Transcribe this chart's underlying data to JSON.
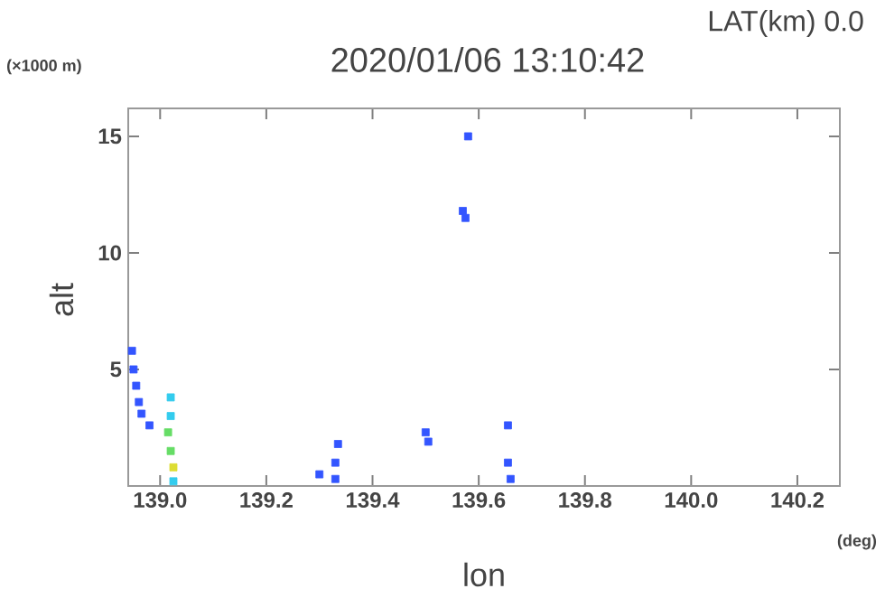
{
  "chart_data": {
    "type": "scatter",
    "title": "2020/01/06 13:10:42",
    "subtitle": "LAT(km) 0.0",
    "xlabel": "lon",
    "ylabel": "alt",
    "annotations": [
      "(×1000 m)",
      "(deg)"
    ],
    "xlim": [
      138.94,
      140.28
    ],
    "ylim": [
      0,
      16.2
    ],
    "xticks": [
      {
        "value": 139.0,
        "label": "139.0"
      },
      {
        "value": 139.2,
        "label": "139.2"
      },
      {
        "value": 139.4,
        "label": "139.4"
      },
      {
        "value": 139.6,
        "label": "139.6"
      },
      {
        "value": 139.8,
        "label": "139.8"
      },
      {
        "value": 140.0,
        "label": "140.0"
      },
      {
        "value": 140.2,
        "label": "140.2"
      }
    ],
    "yticks": [
      5,
      10,
      15
    ],
    "marker": "square",
    "grid": false,
    "series": [
      {
        "color": "#3355ff",
        "x": [
          138.947,
          138.95,
          138.955,
          138.96,
          138.965,
          138.98,
          139.3,
          139.335,
          139.33,
          139.33,
          139.58,
          139.57,
          139.575,
          139.5,
          139.505,
          139.655,
          139.655,
          139.66
        ],
        "values": [
          5.8,
          5.0,
          4.3,
          3.6,
          3.1,
          2.6,
          0.5,
          1.8,
          1.0,
          0.3,
          15.0,
          11.8,
          11.5,
          2.3,
          1.9,
          2.6,
          1.0,
          0.3
        ]
      },
      {
        "color": "#33ccee",
        "x": [
          139.02,
          139.02,
          139.025
        ],
        "values": [
          3.8,
          3.0,
          0.2
        ]
      },
      {
        "color": "#66dd66",
        "x": [
          139.015,
          139.02
        ],
        "values": [
          2.3,
          1.5
        ]
      },
      {
        "color": "#dddd33",
        "x": [
          139.025
        ],
        "values": [
          0.8
        ]
      }
    ]
  }
}
